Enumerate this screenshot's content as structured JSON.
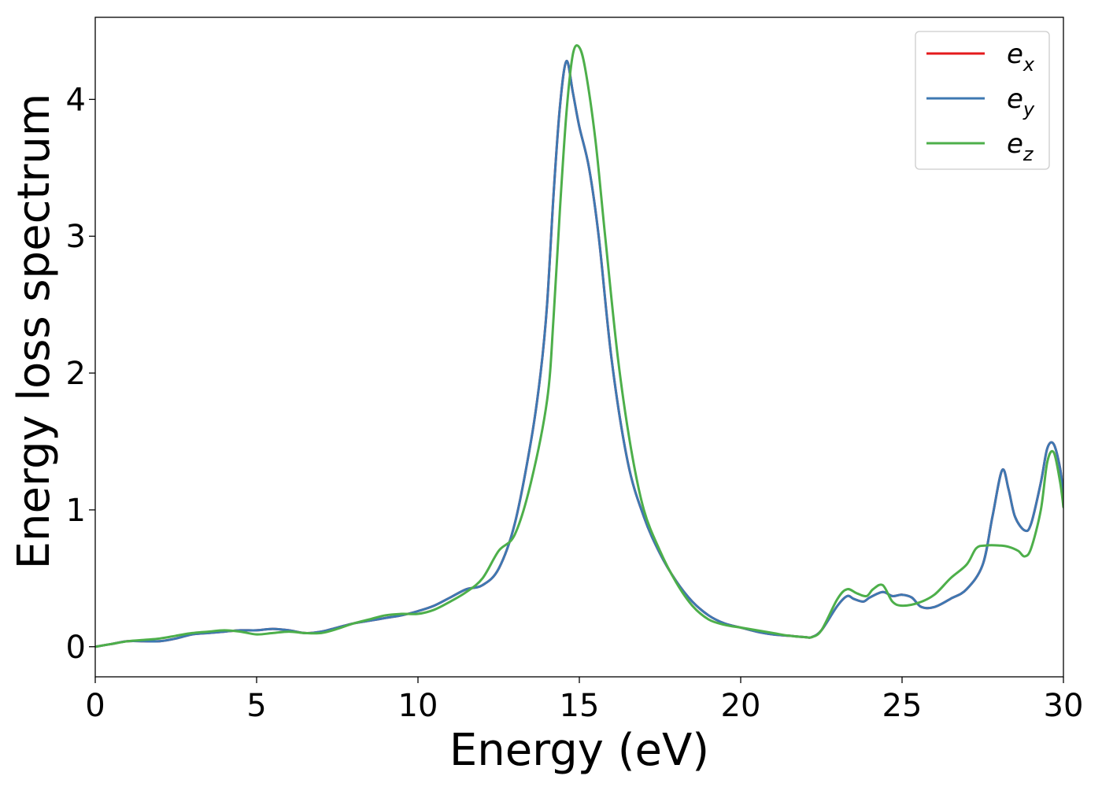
{
  "chart_data": {
    "type": "line",
    "title": "",
    "xlabel": "Energy (eV)",
    "ylabel": "Energy loss spectrum",
    "xlim": [
      0,
      30
    ],
    "ylim": [
      -0.22,
      4.6
    ],
    "xticks": [
      0,
      5,
      10,
      15,
      20,
      25,
      30
    ],
    "yticks": [
      0,
      1,
      2,
      3,
      4
    ],
    "grid": false,
    "legend_position": "top-right",
    "series": [
      {
        "name": "e_x",
        "legend_base": "e",
        "legend_sub": "x",
        "color": "#e41a1c",
        "x": [
          0,
          0.5,
          1,
          1.5,
          2,
          2.5,
          3,
          3.5,
          4,
          4.5,
          5,
          5.5,
          6,
          6.5,
          7,
          7.5,
          8,
          8.5,
          9,
          9.5,
          10,
          10.5,
          11,
          11.5,
          12,
          12.5,
          13,
          13.5,
          13.8,
          14,
          14.2,
          14.4,
          14.6,
          14.8,
          15,
          15.3,
          15.6,
          16,
          16.5,
          17,
          17.5,
          18,
          18.5,
          19,
          19.5,
          20,
          20.5,
          21,
          21.5,
          22,
          22.2,
          22.5,
          23,
          23.3,
          23.5,
          23.8,
          24,
          24.4,
          24.7,
          25,
          25.3,
          25.6,
          26,
          26.5,
          27,
          27.5,
          27.8,
          28.1,
          28.3,
          28.5,
          28.8,
          29,
          29.3,
          29.5,
          29.7,
          29.9,
          30
        ],
        "y": [
          0,
          0.02,
          0.04,
          0.04,
          0.04,
          0.06,
          0.09,
          0.1,
          0.11,
          0.12,
          0.12,
          0.13,
          0.12,
          0.1,
          0.11,
          0.14,
          0.17,
          0.19,
          0.21,
          0.23,
          0.26,
          0.3,
          0.36,
          0.42,
          0.45,
          0.57,
          0.9,
          1.5,
          2.0,
          2.5,
          3.3,
          3.95,
          4.28,
          4.05,
          3.8,
          3.5,
          3.0,
          2.1,
          1.35,
          0.95,
          0.68,
          0.48,
          0.33,
          0.23,
          0.17,
          0.14,
          0.11,
          0.09,
          0.08,
          0.07,
          0.07,
          0.12,
          0.3,
          0.37,
          0.35,
          0.33,
          0.36,
          0.4,
          0.37,
          0.38,
          0.36,
          0.29,
          0.29,
          0.35,
          0.42,
          0.6,
          0.95,
          1.29,
          1.15,
          0.95,
          0.85,
          0.9,
          1.2,
          1.45,
          1.48,
          1.3,
          1.1
        ]
      },
      {
        "name": "e_y",
        "legend_base": "e",
        "legend_sub": "y",
        "color": "#3e78b2",
        "x": [
          0,
          0.5,
          1,
          1.5,
          2,
          2.5,
          3,
          3.5,
          4,
          4.5,
          5,
          5.5,
          6,
          6.5,
          7,
          7.5,
          8,
          8.5,
          9,
          9.5,
          10,
          10.5,
          11,
          11.5,
          12,
          12.5,
          13,
          13.5,
          13.8,
          14,
          14.2,
          14.4,
          14.6,
          14.8,
          15,
          15.3,
          15.6,
          16,
          16.5,
          17,
          17.5,
          18,
          18.5,
          19,
          19.5,
          20,
          20.5,
          21,
          21.5,
          22,
          22.2,
          22.5,
          23,
          23.3,
          23.5,
          23.8,
          24,
          24.4,
          24.7,
          25,
          25.3,
          25.6,
          26,
          26.5,
          27,
          27.5,
          27.8,
          28.1,
          28.3,
          28.5,
          28.8,
          29,
          29.3,
          29.5,
          29.7,
          29.9,
          30
        ],
        "y": [
          0,
          0.02,
          0.04,
          0.04,
          0.04,
          0.06,
          0.09,
          0.1,
          0.11,
          0.12,
          0.12,
          0.13,
          0.12,
          0.1,
          0.11,
          0.14,
          0.17,
          0.19,
          0.21,
          0.23,
          0.26,
          0.3,
          0.36,
          0.42,
          0.45,
          0.57,
          0.9,
          1.5,
          2.0,
          2.5,
          3.3,
          3.95,
          4.28,
          4.05,
          3.8,
          3.5,
          3.0,
          2.1,
          1.35,
          0.95,
          0.68,
          0.48,
          0.33,
          0.23,
          0.17,
          0.14,
          0.11,
          0.09,
          0.08,
          0.07,
          0.07,
          0.12,
          0.3,
          0.37,
          0.35,
          0.33,
          0.36,
          0.4,
          0.37,
          0.38,
          0.36,
          0.29,
          0.29,
          0.35,
          0.42,
          0.6,
          0.95,
          1.29,
          1.15,
          0.95,
          0.85,
          0.9,
          1.2,
          1.45,
          1.48,
          1.3,
          1.1
        ]
      },
      {
        "name": "e_z",
        "legend_base": "e",
        "legend_sub": "z",
        "color": "#4daf4a",
        "x": [
          0,
          0.5,
          1,
          1.5,
          2,
          2.5,
          3,
          3.5,
          4,
          4.5,
          5,
          5.5,
          6,
          6.5,
          7,
          7.5,
          8,
          8.5,
          9,
          9.5,
          10,
          10.5,
          11,
          11.5,
          12,
          12.5,
          13,
          13.5,
          14,
          14.2,
          14.4,
          14.6,
          14.8,
          15,
          15.2,
          15.5,
          15.8,
          16.2,
          16.6,
          17,
          17.5,
          18,
          18.5,
          19,
          19.5,
          20,
          20.5,
          21,
          21.5,
          22,
          22.2,
          22.5,
          23,
          23.3,
          23.6,
          23.9,
          24.1,
          24.4,
          24.7,
          25,
          25.5,
          26,
          26.5,
          27,
          27.3,
          27.6,
          28,
          28.3,
          28.6,
          28.8,
          29,
          29.3,
          29.5,
          29.7,
          29.9,
          30
        ],
        "y": [
          0,
          0.02,
          0.04,
          0.05,
          0.06,
          0.08,
          0.1,
          0.11,
          0.12,
          0.11,
          0.09,
          0.1,
          0.11,
          0.1,
          0.1,
          0.13,
          0.17,
          0.2,
          0.23,
          0.24,
          0.24,
          0.27,
          0.33,
          0.4,
          0.5,
          0.7,
          0.82,
          1.2,
          1.8,
          2.4,
          3.2,
          3.9,
          4.33,
          4.38,
          4.2,
          3.7,
          3.0,
          2.1,
          1.45,
          1.0,
          0.7,
          0.47,
          0.3,
          0.2,
          0.16,
          0.14,
          0.12,
          0.1,
          0.08,
          0.07,
          0.07,
          0.12,
          0.35,
          0.42,
          0.39,
          0.37,
          0.42,
          0.45,
          0.33,
          0.3,
          0.32,
          0.38,
          0.5,
          0.6,
          0.72,
          0.74,
          0.74,
          0.73,
          0.7,
          0.66,
          0.72,
          1.0,
          1.35,
          1.42,
          1.2,
          1.02
        ]
      }
    ]
  }
}
